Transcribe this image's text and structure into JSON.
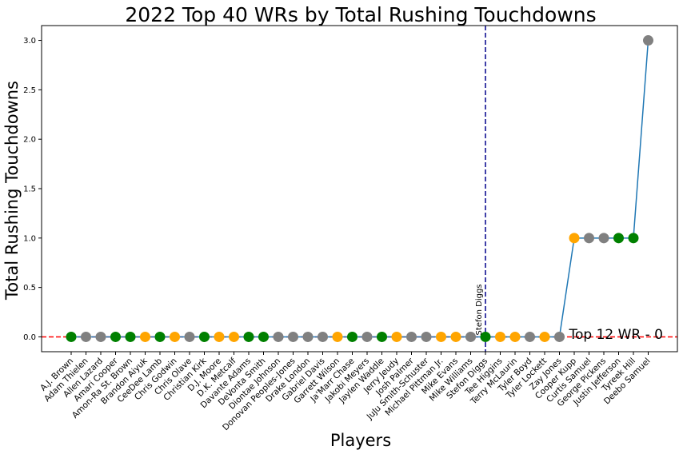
{
  "chart_data": {
    "type": "line",
    "title": "2022 Top 40 WRs by Total Rushing Touchdowns",
    "xlabel": "Players",
    "ylabel": "Total Rushing Touchdowns",
    "ylim": [
      -0.15,
      3.15
    ],
    "yticks": [
      0.0,
      0.5,
      1.0,
      1.5,
      2.0,
      2.5,
      3.0
    ],
    "ytick_labels": [
      "0.0",
      "0.5",
      "1.0",
      "1.5",
      "2.0",
      "2.5",
      "3.0"
    ],
    "grid": false,
    "line_color": "#1f77b4",
    "point_colors": {
      "green": "#008000",
      "gray": "#808080",
      "orange": "#ffa500"
    },
    "categories": [
      "A.J. Brown",
      "Adam Thielen",
      "Allen Lazard",
      "Amari Cooper",
      "Amon-Ra St. Brown",
      "Brandon Aiyuk",
      "CeeDee Lamb",
      "Chris Godwin",
      "Chris Olave",
      "Christian Kirk",
      "D.J. Moore",
      "D.K. Metcalf",
      "Davante Adams",
      "DeVonta Smith",
      "Diontae Johnson",
      "Donovan Peoples-Jones",
      "Drake London",
      "Gabriel Davis",
      "Garrett Wilson",
      "Ja'Marr Chase",
      "Jakobi Meyers",
      "Jaylen Waddle",
      "Jerry Jeudy",
      "Josh Palmer",
      "JuJu Smith-Schuster",
      "Michael Pittman Jr.",
      "Mike Evans",
      "Mike Williams",
      "Stefon Diggs",
      "Tee Higgins",
      "Terry McLaurin",
      "Tyler Boyd",
      "Tyler Lockett",
      "Zay Jones",
      "Cooper Kupp",
      "Curtis Samuel",
      "George Pickens",
      "Justin Jefferson",
      "Tyreek Hill",
      "Deebo Samuel"
    ],
    "values": [
      0,
      0,
      0,
      0,
      0,
      0,
      0,
      0,
      0,
      0,
      0,
      0,
      0,
      0,
      0,
      0,
      0,
      0,
      0,
      0,
      0,
      0,
      0,
      0,
      0,
      0,
      0,
      0,
      0,
      0,
      0,
      0,
      0,
      0,
      1,
      1,
      1,
      1,
      1,
      3
    ],
    "point_color_keys": [
      "green",
      "gray",
      "gray",
      "green",
      "green",
      "orange",
      "green",
      "orange",
      "gray",
      "green",
      "orange",
      "orange",
      "green",
      "green",
      "gray",
      "gray",
      "gray",
      "gray",
      "orange",
      "green",
      "gray",
      "green",
      "orange",
      "gray",
      "gray",
      "orange",
      "orange",
      "gray",
      "green",
      "orange",
      "orange",
      "gray",
      "orange",
      "gray",
      "orange",
      "gray",
      "gray",
      "green",
      "green",
      "gray"
    ],
    "hline": {
      "y": 0,
      "color": "#ff0000",
      "label": "Top 12 WR - 0"
    },
    "vline": {
      "category": "Stefon Diggs",
      "color": "#00008b",
      "label": "Stefon Diggs"
    }
  }
}
